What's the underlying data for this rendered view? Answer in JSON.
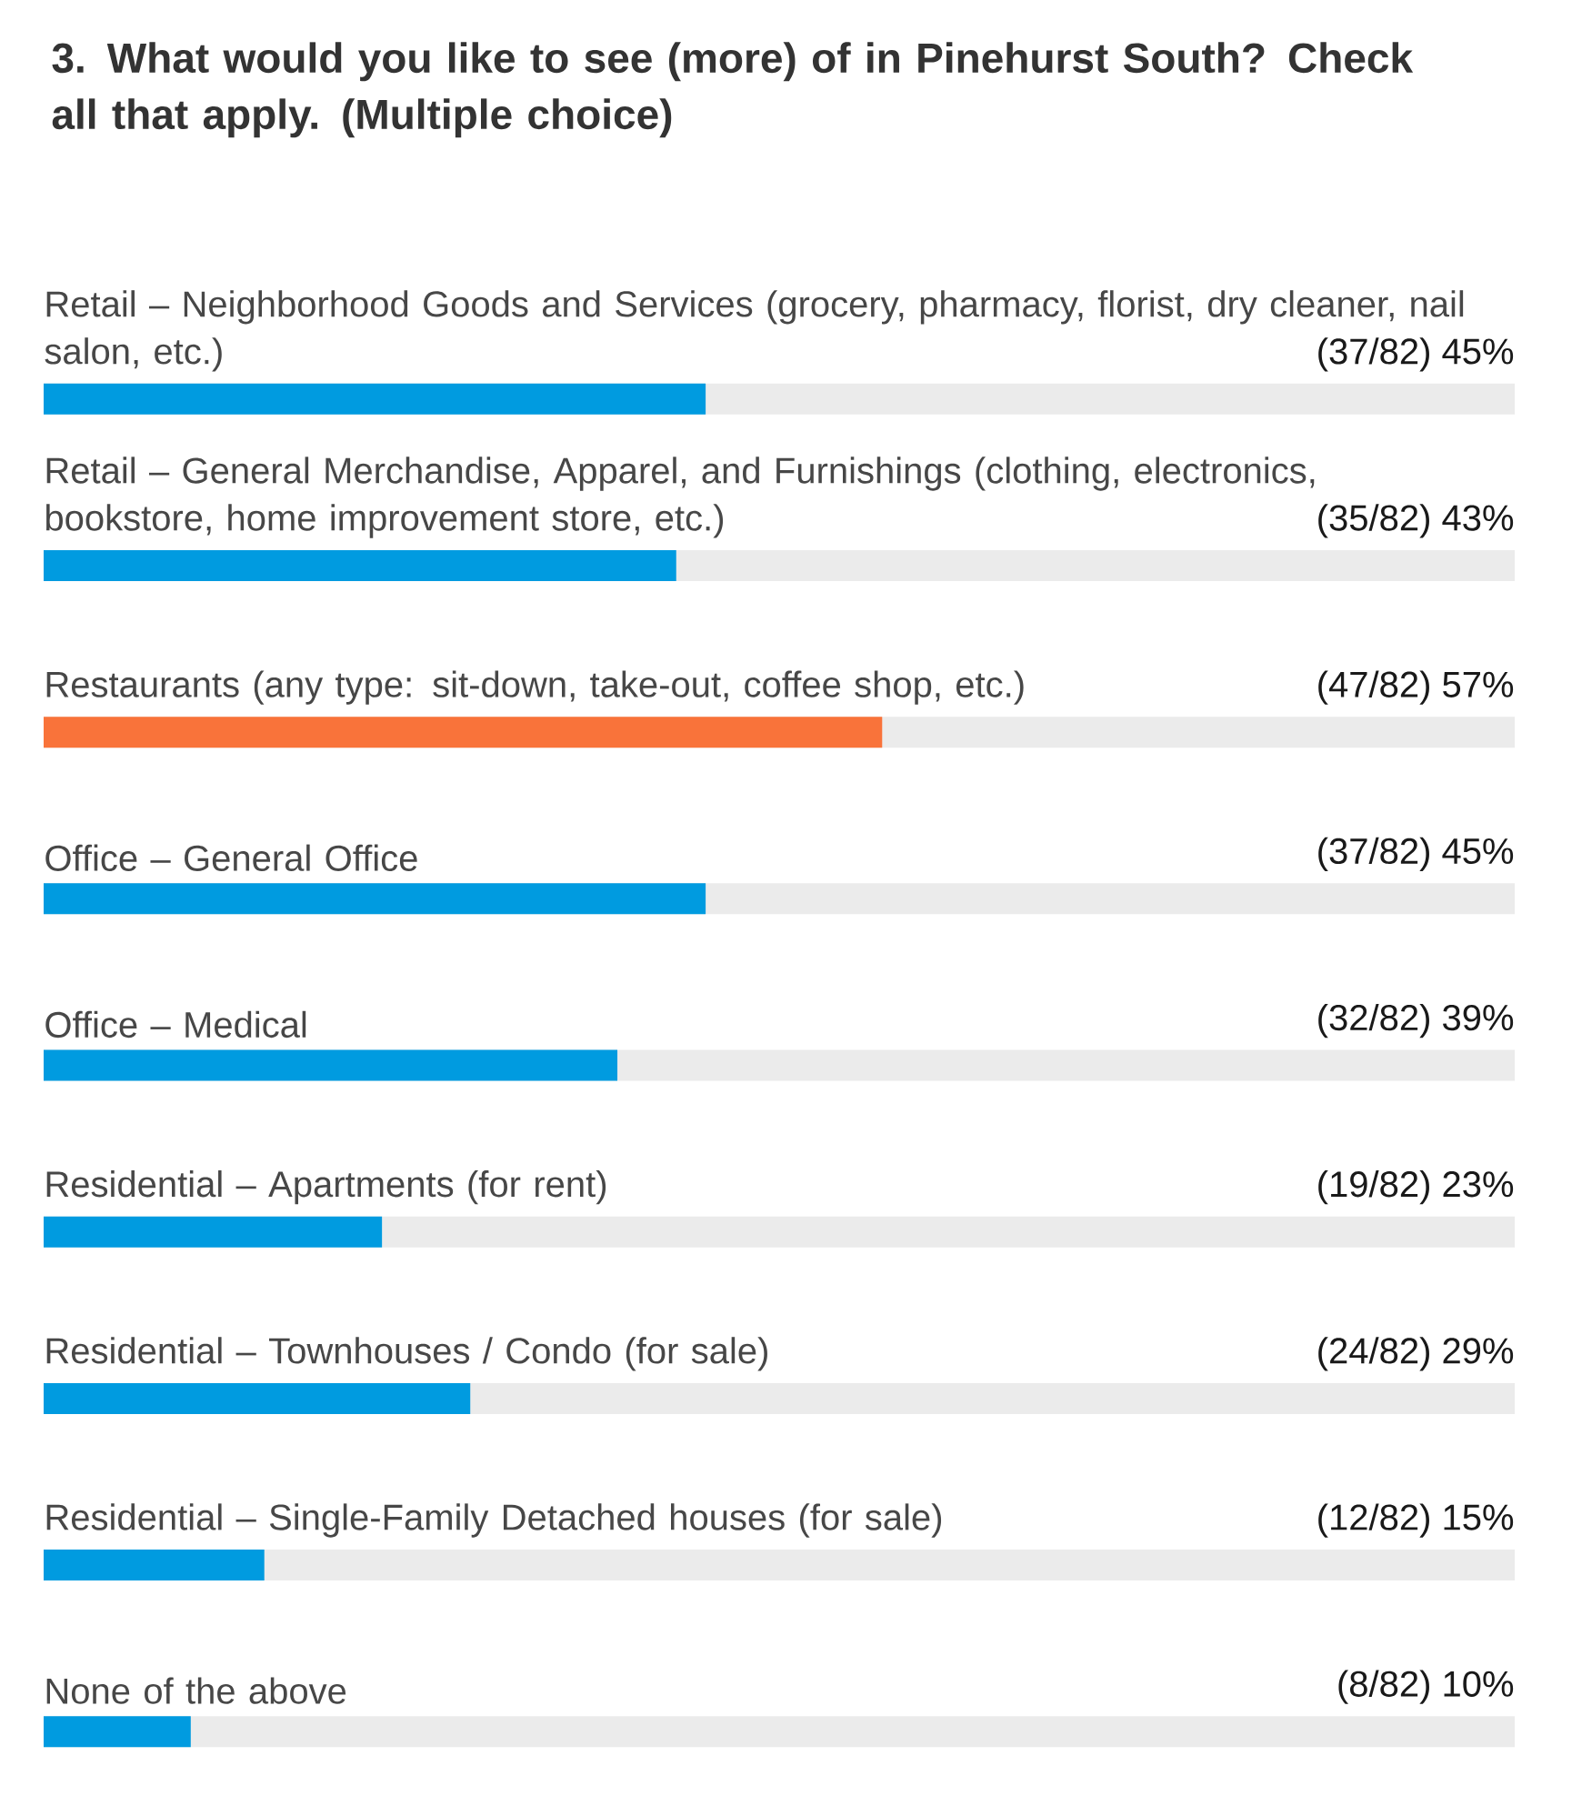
{
  "chart_data": {
    "type": "bar",
    "orientation": "horizontal",
    "title": "3. What would you like to see (more) of in Pinehurst South? Check all that apply. (Multiple choice)",
    "categories": [
      "Retail – Neighborhood Goods and Services (grocery, pharmacy, florist, dry cleaner, nail salon, etc.)",
      "Retail – General Merchandise, Apparel, and Furnishings (clothing, electronics, bookstore, home improvement store, etc.)",
      "Restaurants (any type:  sit-down, take-out, coffee shop, etc.)",
      "Office – General Office",
      "Office – Medical",
      "Residential – Apartments (for rent)",
      "Residential – Townhouses / Condo (for sale)",
      "Residential – Single-Family Detached houses (for sale)",
      "None of the above"
    ],
    "values": [
      45,
      43,
      57,
      45,
      39,
      23,
      29,
      15,
      10
    ],
    "colors": [
      "#009be0",
      "#009be0",
      "#f9733a",
      "#009be0",
      "#009be0",
      "#009be0",
      "#009be0",
      "#009be0",
      "#009be0"
    ],
    "value_labels": [
      "(37/82) 45%",
      "(35/82) 43%",
      "(47/82) 57%",
      "(37/82) 45%",
      "(32/82) 39%",
      "(19/82) 23%",
      "(24/82) 29%",
      "(12/82) 15%",
      "(8/82) 10%"
    ],
    "xlim": [
      0,
      100
    ]
  }
}
